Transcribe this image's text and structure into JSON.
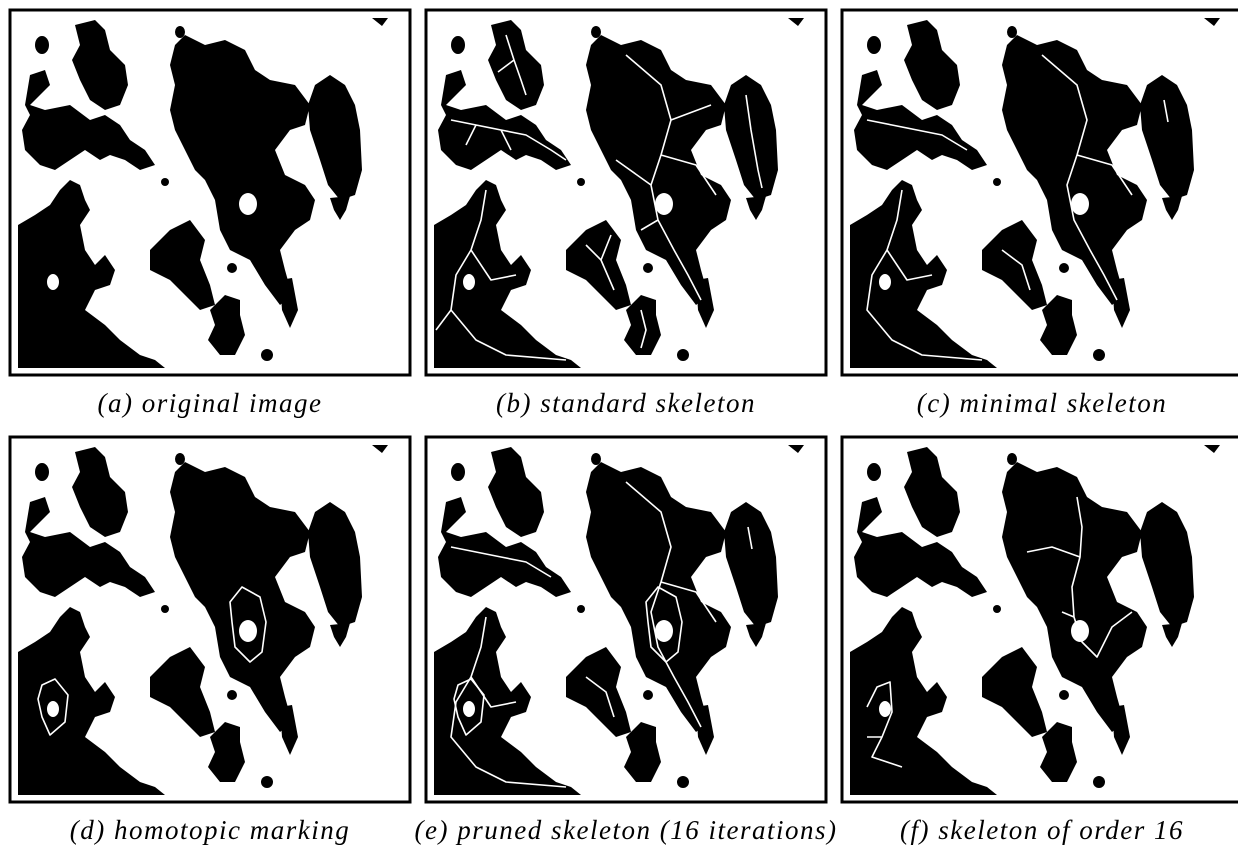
{
  "figure": {
    "captions": [
      "(a) original image",
      "(b) standard skeleton",
      "(c) minimal skeleton",
      "(d) homotopic marking",
      "(e) pruned skeleton (16 iterations)",
      "(f) skeleton of order 16"
    ]
  }
}
